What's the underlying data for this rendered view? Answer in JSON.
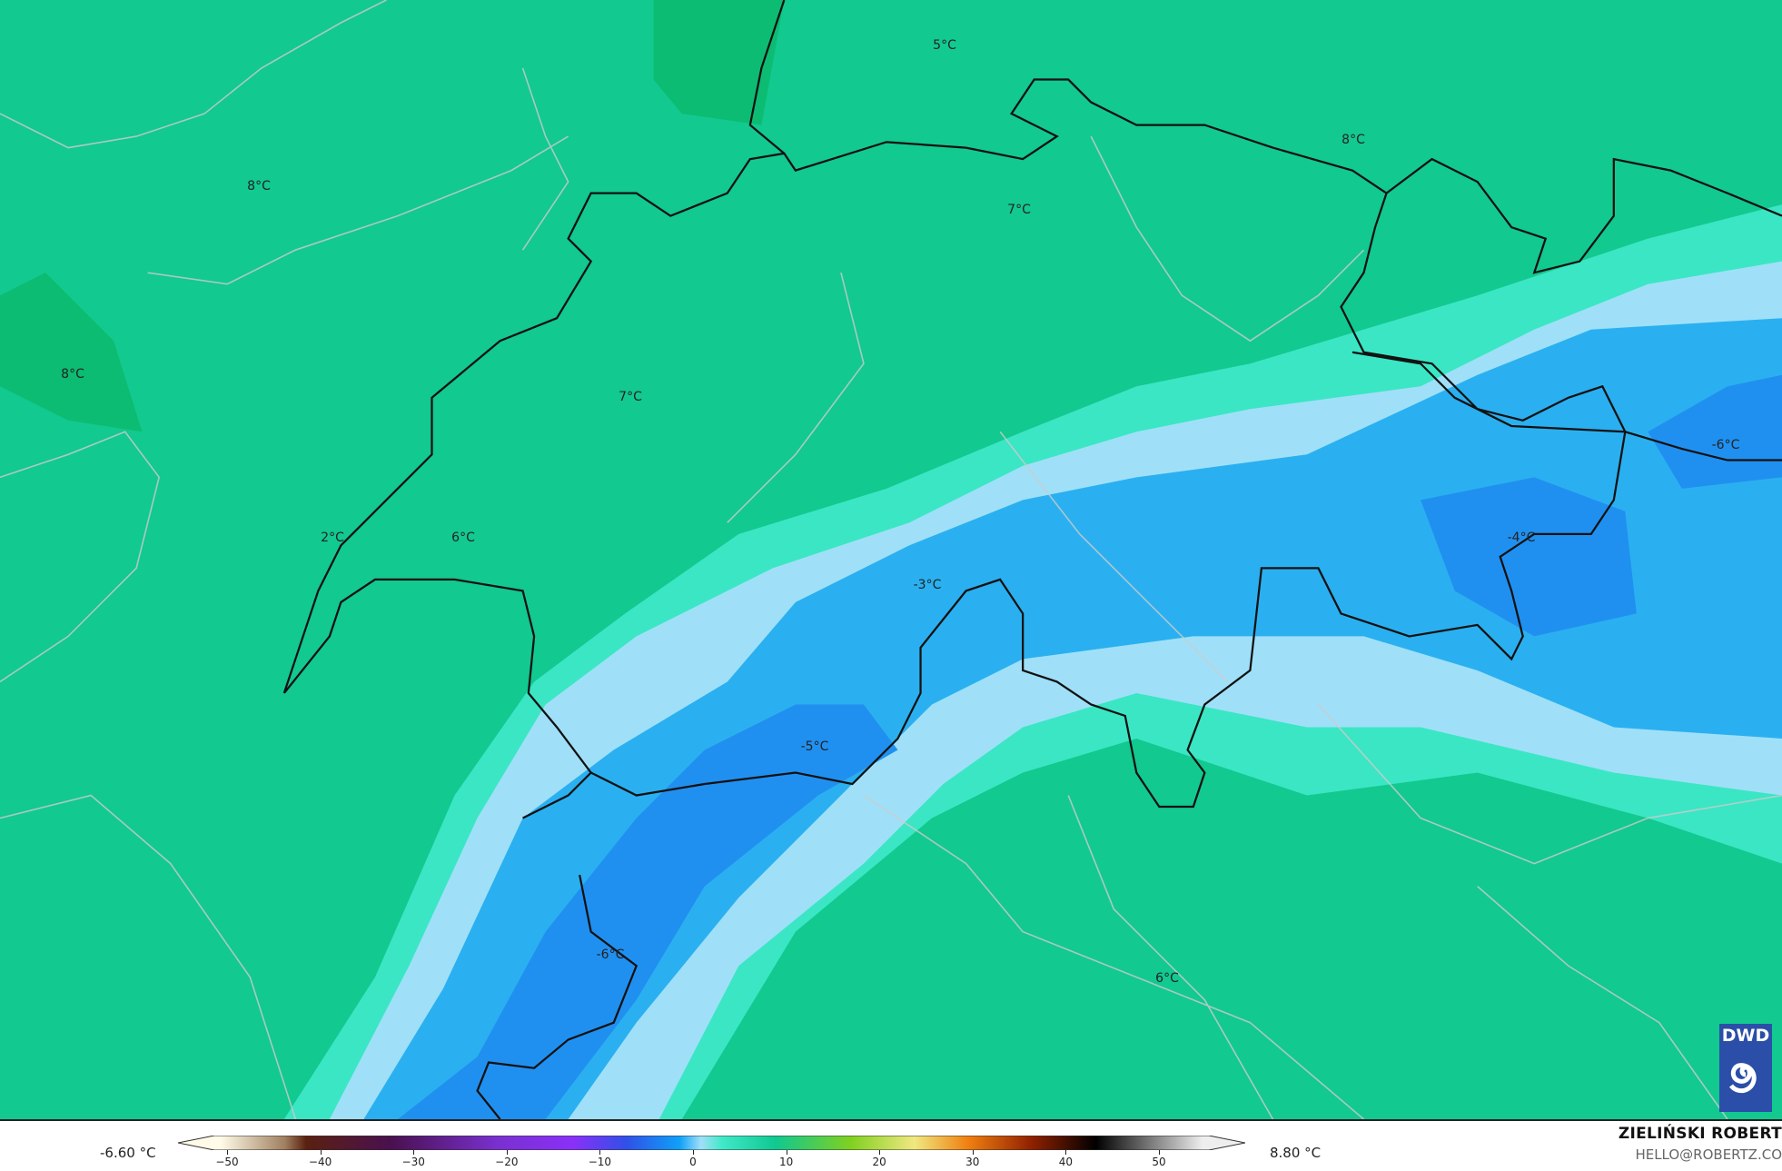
{
  "map": {
    "colors": {
      "land_base": "#0fcc8e",
      "cyan": "#40e8c8",
      "light_blue": "#9fe0f8",
      "blue": "#2ab0f0",
      "deep_blue": "#2090f0",
      "border": "#111111",
      "admin": "#bbbbbb"
    },
    "labels": [
      "5°C",
      "8°C",
      "8°C",
      "7°C",
      "8°C",
      "7°C",
      "-6°C",
      "2°C",
      "6°C",
      "-4°C",
      "-3°C",
      "-5°C",
      "-6°C",
      "6°C"
    ]
  },
  "legend": {
    "min_value": "-6.60 °C",
    "max_value": "8.80 °C",
    "ticks": [
      "−50",
      "−40",
      "−30",
      "−20",
      "−10",
      "0",
      "10",
      "20",
      "30",
      "40",
      "50"
    ]
  },
  "credits": {
    "author": "ZIELIŃSKI ROBERT",
    "email": "HELLO@ROBERTZ.CO",
    "logo_text": "DWD"
  }
}
